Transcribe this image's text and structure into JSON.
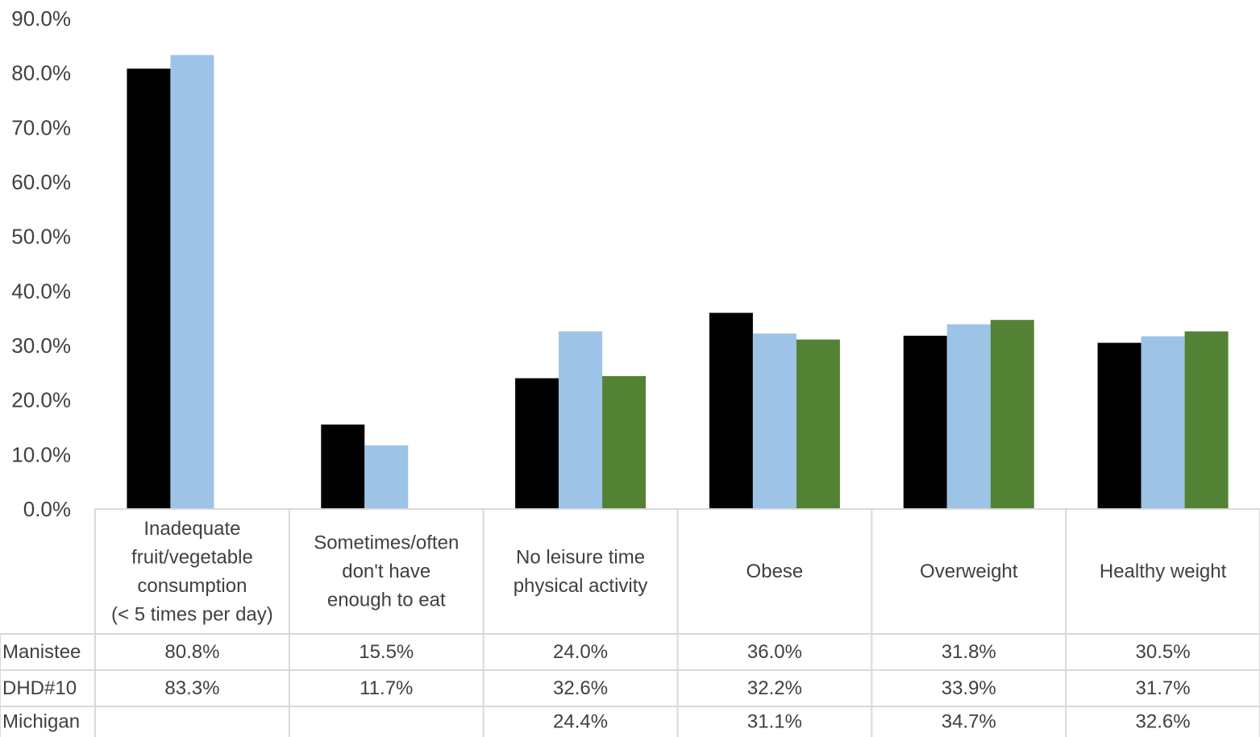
{
  "chart_data": {
    "type": "bar",
    "categories": [
      [
        "Inadequate",
        "fruit/vegetable",
        "consumption",
        "(< 5 times per day)"
      ],
      [
        "Sometimes/often",
        "don't have",
        "enough to eat"
      ],
      [
        "No leisure time",
        "physical activity"
      ],
      [
        "Obese"
      ],
      [
        "Overweight"
      ],
      [
        "Healthy weight"
      ]
    ],
    "series": [
      {
        "name": "Manistee",
        "color": "#000000",
        "values": [
          80.8,
          15.5,
          24.0,
          36.0,
          31.8,
          30.5
        ],
        "labels": [
          "80.8%",
          "15.5%",
          "24.0%",
          "36.0%",
          "31.8%",
          "30.5%"
        ]
      },
      {
        "name": "DHD#10",
        "color": "#9DC3E6",
        "values": [
          83.3,
          11.7,
          32.6,
          32.2,
          33.9,
          31.7
        ],
        "labels": [
          "83.3%",
          "11.7%",
          "32.6%",
          "32.2%",
          "33.9%",
          "31.7%"
        ]
      },
      {
        "name": "Michigan",
        "color": "#548235",
        "values": [
          null,
          null,
          24.4,
          31.1,
          34.7,
          32.6
        ],
        "labels": [
          "",
          "",
          "24.4%",
          "31.1%",
          "34.7%",
          "32.6%"
        ]
      }
    ],
    "y_ticks": [
      "0.0%",
      "10.0%",
      "20.0%",
      "30.0%",
      "40.0%",
      "50.0%",
      "60.0%",
      "70.0%",
      "80.0%",
      "90.0%"
    ],
    "ylim": [
      0,
      90
    ],
    "grid": false,
    "legend": "data table below chart"
  }
}
